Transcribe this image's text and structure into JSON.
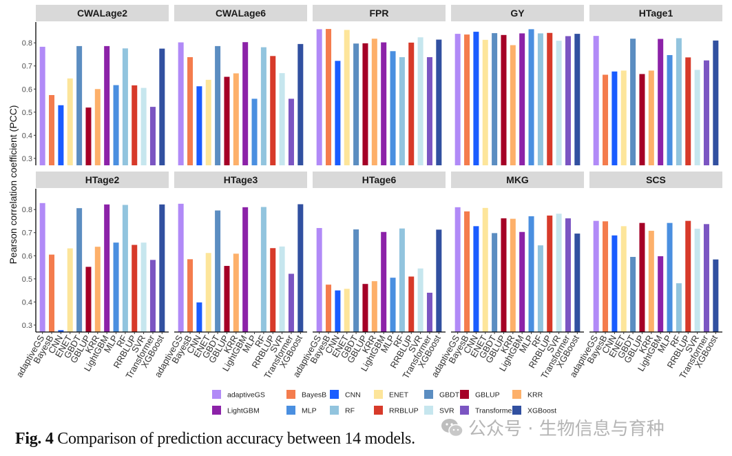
{
  "figure": {
    "caption_label": "Fig. 4",
    "caption_text": " Comparison of prediction accuracy between 14 models.",
    "watermark_text": "公众号 · 生物信息与育种"
  },
  "chart_data": {
    "type": "bar",
    "layout": "facet-grid 2x5",
    "ylabel": "Pearson correlation coefficient (PCC)",
    "xlabel": "",
    "ylim": [
      0.27,
      0.89
    ],
    "yticks": [
      0.3,
      0.4,
      0.5,
      0.6,
      0.7,
      0.8
    ],
    "ytick_labels": [
      "0.3",
      "0.4",
      "0.5",
      "0.6",
      "0.7",
      "0.8"
    ],
    "grid": false,
    "legend_position": "bottom",
    "categories": [
      "adaptiveGS",
      "BayesB",
      "CNN",
      "ENET",
      "GBDT",
      "GBLUP",
      "KRR",
      "LightGBM",
      "MLP",
      "RF",
      "RRBLUP",
      "SVR",
      "Transformer",
      "XGBoost"
    ],
    "colors": {
      "adaptiveGS": "#b18af7",
      "BayesB": "#f47c4d",
      "CNN": "#1a5cff",
      "ENET": "#fde59a",
      "GBDT": "#5b8dc1",
      "GBLUP": "#a50026",
      "KRR": "#fdb06a",
      "LightGBM": "#8c22a8",
      "MLP": "#4a8fe0",
      "RF": "#92c4de",
      "RRBLUP": "#d73a2a",
      "SVR": "#c6e6ee",
      "Transformer": "#7b55c2",
      "XGBoost": "#3150a0"
    },
    "panels": [
      {
        "title": "CWALage2",
        "values": [
          0.783,
          0.574,
          0.53,
          0.646,
          0.786,
          0.52,
          0.6,
          0.786,
          0.617,
          0.776,
          0.616,
          0.605,
          0.523,
          0.775
        ]
      },
      {
        "title": "CWALage6",
        "values": [
          0.802,
          0.738,
          0.612,
          0.64,
          0.786,
          0.653,
          0.668,
          0.803,
          0.558,
          0.781,
          0.743,
          0.669,
          0.558,
          0.795
        ]
      },
      {
        "title": "FPR",
        "values": [
          0.859,
          0.86,
          0.722,
          0.856,
          0.797,
          0.798,
          0.818,
          0.802,
          0.764,
          0.738,
          0.801,
          0.824,
          0.738,
          0.814
        ]
      },
      {
        "title": "GY",
        "values": [
          0.839,
          0.836,
          0.848,
          0.813,
          0.842,
          0.834,
          0.79,
          0.841,
          0.859,
          0.841,
          0.843,
          0.809,
          0.829,
          0.839
        ]
      },
      {
        "title": "HTage1",
        "values": [
          0.83,
          0.662,
          0.676,
          0.68,
          0.818,
          0.665,
          0.68,
          0.817,
          0.747,
          0.82,
          0.737,
          0.683,
          0.724,
          0.81
        ]
      },
      {
        "title": "HTage2",
        "values": [
          0.828,
          0.605,
          0.278,
          0.632,
          0.806,
          0.552,
          0.639,
          0.822,
          0.657,
          0.82,
          0.647,
          0.657,
          0.582,
          0.822
        ]
      },
      {
        "title": "HTage3",
        "values": [
          0.825,
          0.585,
          0.398,
          0.612,
          0.796,
          0.556,
          0.609,
          0.81,
          null,
          0.811,
          0.633,
          0.64,
          0.522,
          0.823
        ]
      },
      {
        "title": "HTage6",
        "values": [
          0.72,
          0.475,
          0.45,
          0.457,
          0.714,
          0.478,
          0.49,
          0.703,
          0.505,
          0.718,
          0.51,
          0.545,
          0.44,
          0.713
        ]
      },
      {
        "title": "MKG",
        "values": [
          0.81,
          0.792,
          0.728,
          0.807,
          0.698,
          0.762,
          0.76,
          0.703,
          0.771,
          0.645,
          0.774,
          0.782,
          0.762,
          0.696
        ]
      },
      {
        "title": "SCS",
        "values": [
          0.751,
          0.749,
          0.688,
          0.728,
          0.595,
          0.742,
          0.708,
          0.598,
          0.742,
          0.481,
          0.751,
          0.717,
          0.737,
          0.584
        ]
      }
    ],
    "legend": {
      "entries": [
        "adaptiveGS",
        "BayesB",
        "CNN",
        "ENET",
        "GBDT",
        "GBLUP",
        "KRR",
        "LightGBM",
        "MLP",
        "RF",
        "RRBLUP",
        "SVR",
        "Transformer",
        "XGBoost"
      ]
    }
  }
}
